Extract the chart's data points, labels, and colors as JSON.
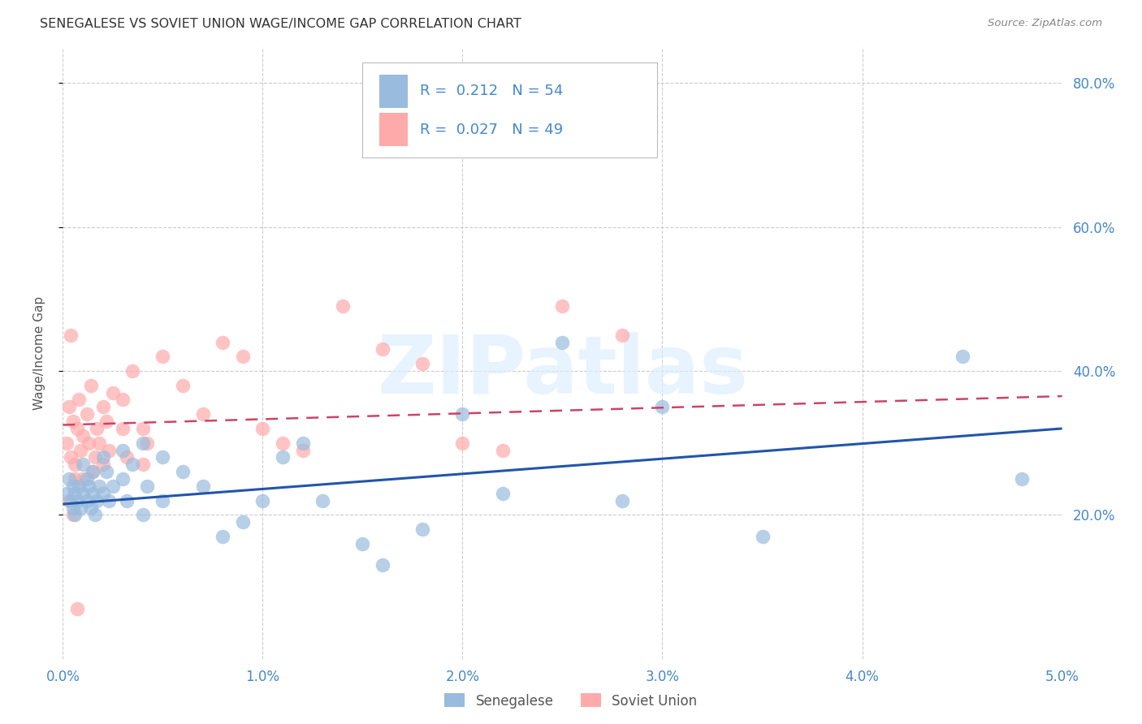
{
  "title": "SENEGALESE VS SOVIET UNION WAGE/INCOME GAP CORRELATION CHART",
  "source": "Source: ZipAtlas.com",
  "ylabel": "Wage/Income Gap",
  "xlim": [
    0.0,
    0.05
  ],
  "ylim": [
    0.0,
    0.85
  ],
  "xtick_labels": [
    "0.0%",
    "1.0%",
    "2.0%",
    "3.0%",
    "4.0%",
    "5.0%"
  ],
  "xtick_vals": [
    0.0,
    0.01,
    0.02,
    0.03,
    0.04,
    0.05
  ],
  "ytick_labels": [
    "20.0%",
    "40.0%",
    "60.0%",
    "80.0%"
  ],
  "ytick_vals": [
    0.2,
    0.4,
    0.6,
    0.8
  ],
  "gridline_color": "#cccccc",
  "background_color": "#ffffff",
  "senegalese_color": "#99bbdd",
  "soviet_color": "#ffaaaa",
  "senegalese_R": 0.212,
  "senegalese_N": 54,
  "soviet_R": 0.027,
  "soviet_N": 49,
  "senegalese_trend_color": "#2255aa",
  "soviet_trend_color": "#cc4466",
  "title_color": "#333333",
  "source_color": "#888888",
  "axis_label_color": "#555555",
  "tick_color": "#4488cc",
  "watermark": "ZIPatlas",
  "watermark_color": "#ddeeff",
  "legend_text_color": "#4488cc",
  "senegalese_x": [
    0.0002,
    0.0003,
    0.0004,
    0.0005,
    0.0005,
    0.0006,
    0.0006,
    0.0007,
    0.0008,
    0.0009,
    0.001,
    0.001,
    0.0012,
    0.0012,
    0.0013,
    0.0014,
    0.0015,
    0.0015,
    0.0016,
    0.0017,
    0.0018,
    0.002,
    0.002,
    0.0022,
    0.0023,
    0.0025,
    0.003,
    0.003,
    0.0032,
    0.0035,
    0.004,
    0.004,
    0.0042,
    0.005,
    0.005,
    0.006,
    0.007,
    0.008,
    0.009,
    0.01,
    0.011,
    0.012,
    0.013,
    0.015,
    0.016,
    0.018,
    0.02,
    0.022,
    0.025,
    0.028,
    0.03,
    0.035,
    0.045,
    0.048
  ],
  "senegalese_y": [
    0.23,
    0.25,
    0.22,
    0.24,
    0.21,
    0.23,
    0.2,
    0.22,
    0.24,
    0.21,
    0.27,
    0.23,
    0.25,
    0.22,
    0.24,
    0.21,
    0.23,
    0.26,
    0.2,
    0.22,
    0.24,
    0.28,
    0.23,
    0.26,
    0.22,
    0.24,
    0.29,
    0.25,
    0.22,
    0.27,
    0.3,
    0.2,
    0.24,
    0.28,
    0.22,
    0.26,
    0.24,
    0.17,
    0.19,
    0.22,
    0.28,
    0.3,
    0.22,
    0.16,
    0.13,
    0.18,
    0.34,
    0.23,
    0.44,
    0.22,
    0.35,
    0.17,
    0.42,
    0.25
  ],
  "soviet_x": [
    0.0002,
    0.0003,
    0.0004,
    0.0005,
    0.0006,
    0.0007,
    0.0008,
    0.0009,
    0.001,
    0.001,
    0.0012,
    0.0013,
    0.0014,
    0.0015,
    0.0016,
    0.0017,
    0.0018,
    0.002,
    0.002,
    0.0022,
    0.0023,
    0.0025,
    0.003,
    0.003,
    0.0032,
    0.0035,
    0.004,
    0.004,
    0.0042,
    0.005,
    0.006,
    0.007,
    0.008,
    0.009,
    0.01,
    0.011,
    0.012,
    0.014,
    0.016,
    0.018,
    0.02,
    0.022,
    0.025,
    0.028,
    0.0003,
    0.0004,
    0.0005,
    0.0006,
    0.0007
  ],
  "soviet_y": [
    0.3,
    0.35,
    0.28,
    0.33,
    0.27,
    0.32,
    0.36,
    0.29,
    0.31,
    0.25,
    0.34,
    0.3,
    0.38,
    0.26,
    0.28,
    0.32,
    0.3,
    0.35,
    0.27,
    0.33,
    0.29,
    0.37,
    0.36,
    0.32,
    0.28,
    0.4,
    0.32,
    0.27,
    0.3,
    0.42,
    0.38,
    0.34,
    0.44,
    0.42,
    0.32,
    0.3,
    0.29,
    0.49,
    0.43,
    0.41,
    0.3,
    0.29,
    0.49,
    0.45,
    0.22,
    0.45,
    0.2,
    0.25,
    0.07
  ],
  "sen_trend_x0": 0.0,
  "sen_trend_y0": 0.215,
  "sen_trend_x1": 0.05,
  "sen_trend_y1": 0.32,
  "sov_trend_x0": 0.0,
  "sov_trend_y0": 0.325,
  "sov_trend_x1": 0.05,
  "sov_trend_y1": 0.365
}
